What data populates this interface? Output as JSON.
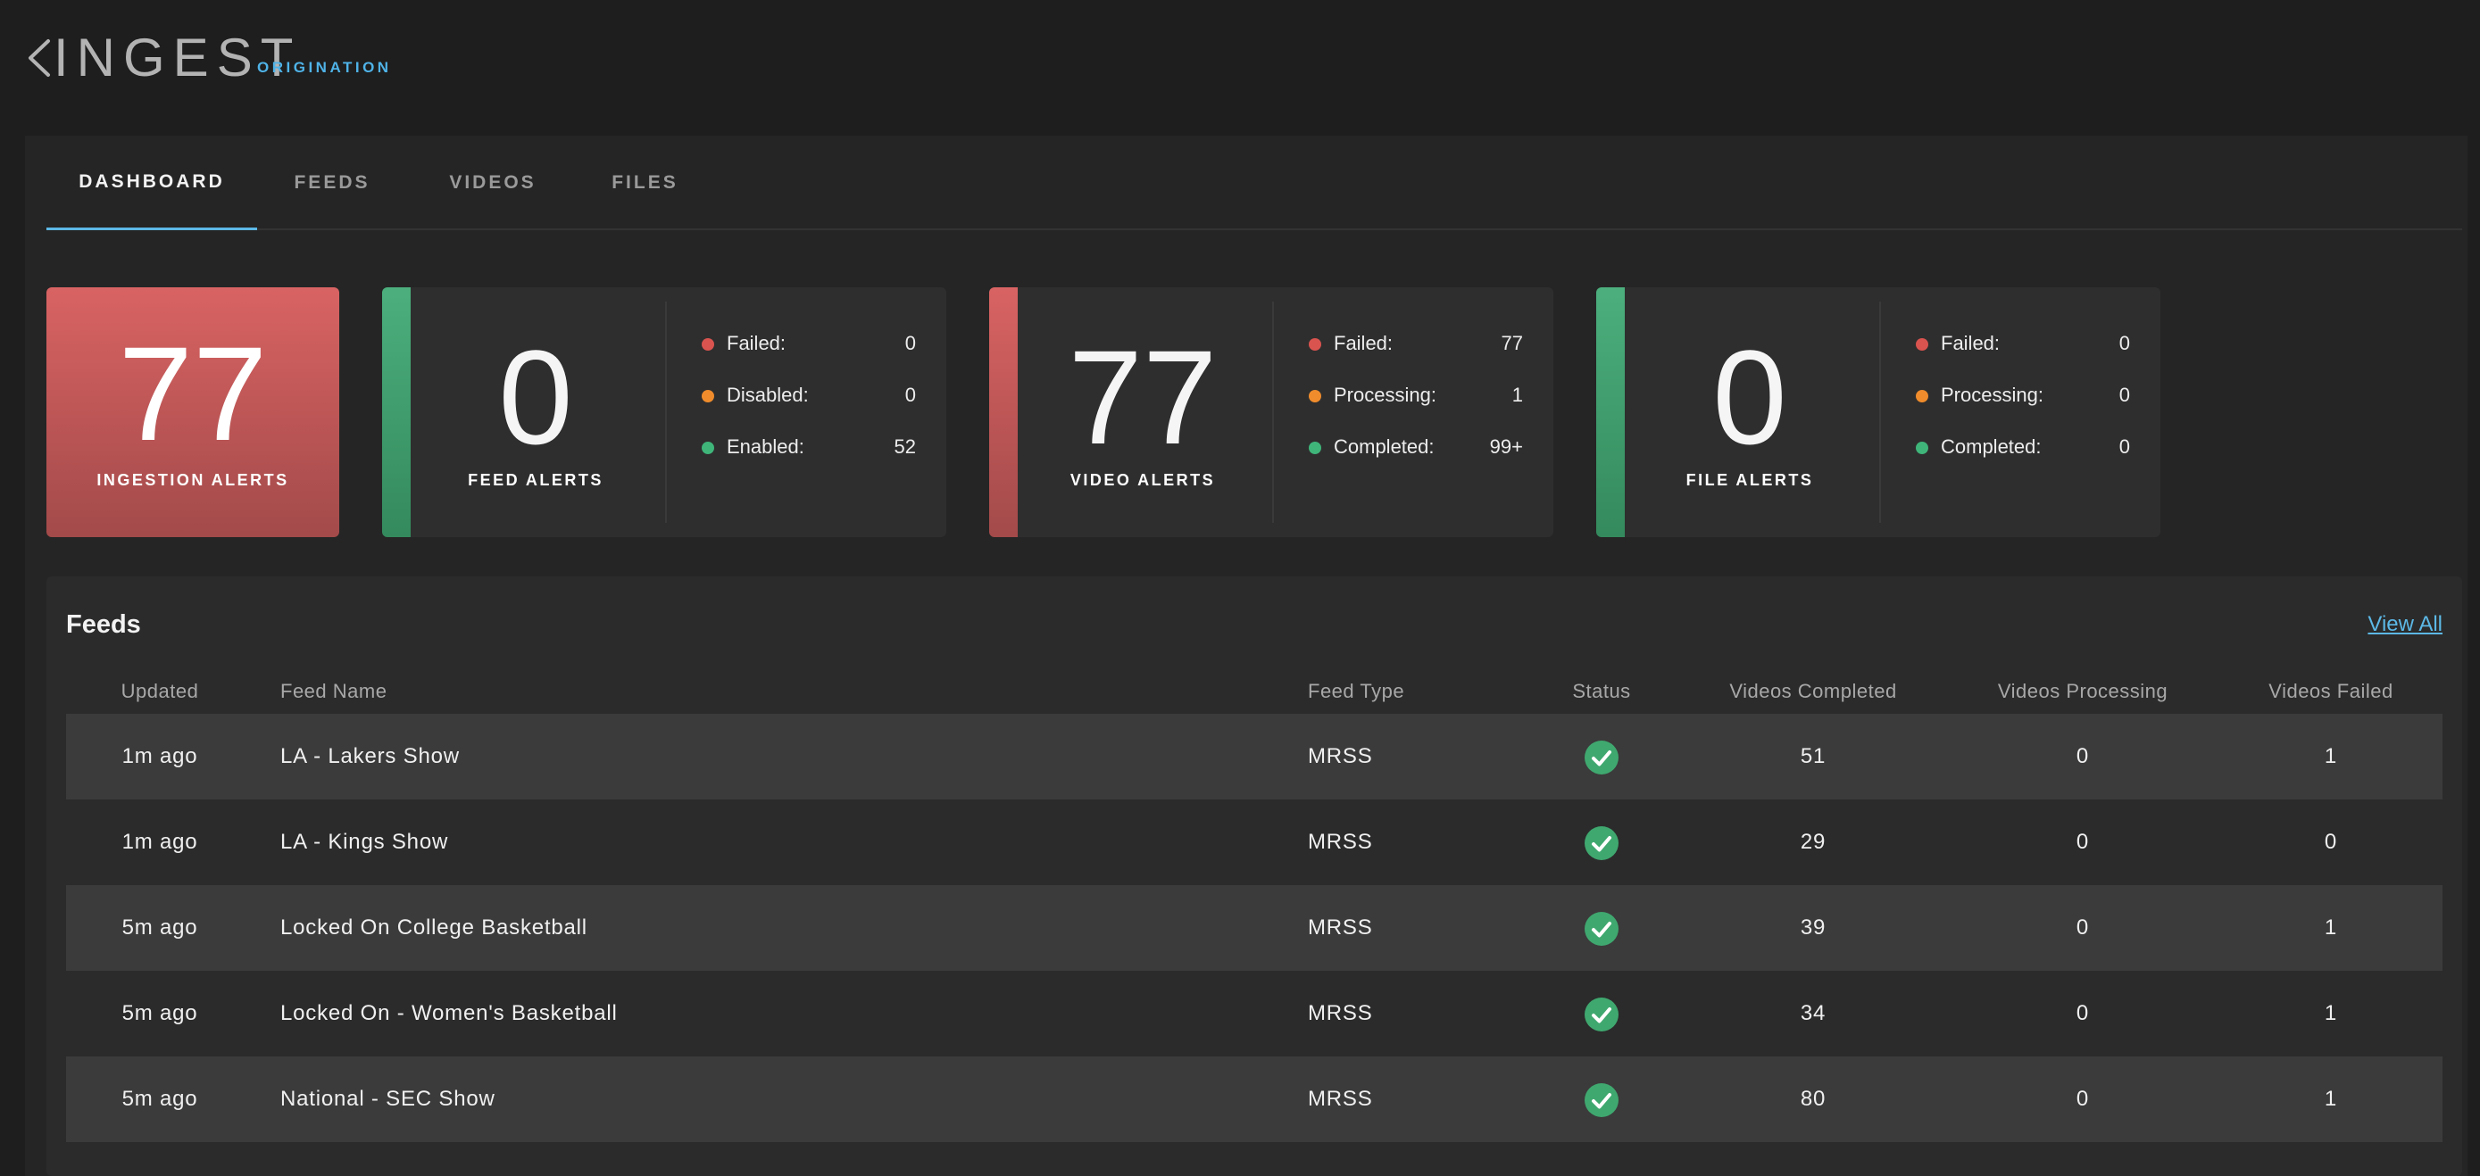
{
  "header": {
    "title": "INGEST",
    "subtitle": "ORIGINATION",
    "back_icon": "chevron-left-icon"
  },
  "tabs": [
    {
      "label": "DASHBOARD",
      "active": true
    },
    {
      "label": "FEEDS",
      "active": false
    },
    {
      "label": "VIDEOS",
      "active": false
    },
    {
      "label": "FILES",
      "active": false
    }
  ],
  "colors": {
    "accent": "#5cb8e6",
    "alert_red": "#d96363",
    "ok_green": "#4caf7d",
    "warn_orange": "#f08c2c"
  },
  "ingestion_alerts": {
    "value": "77",
    "label": "INGESTION ALERTS"
  },
  "alert_cards": [
    {
      "value": "0",
      "label": "FEED ALERTS",
      "status": "green",
      "stats": [
        {
          "label": "Failed:",
          "value": "0",
          "color": "red"
        },
        {
          "label": "Disabled:",
          "value": "0",
          "color": "orange"
        },
        {
          "label": "Enabled:",
          "value": "52",
          "color": "green"
        }
      ]
    },
    {
      "value": "77",
      "label": "VIDEO ALERTS",
      "status": "red",
      "stats": [
        {
          "label": "Failed:",
          "value": "77",
          "color": "red"
        },
        {
          "label": "Processing:",
          "value": "1",
          "color": "orange"
        },
        {
          "label": "Completed:",
          "value": "99+",
          "color": "green"
        }
      ]
    },
    {
      "value": "0",
      "label": "FILE ALERTS",
      "status": "green",
      "stats": [
        {
          "label": "Failed:",
          "value": "0",
          "color": "red"
        },
        {
          "label": "Processing:",
          "value": "0",
          "color": "orange"
        },
        {
          "label": "Completed:",
          "value": "0",
          "color": "green"
        }
      ]
    }
  ],
  "feeds": {
    "title": "Feeds",
    "view_all": "View All",
    "columns": [
      "Updated",
      "Feed Name",
      "Feed Type",
      "Status",
      "Videos Completed",
      "Videos Processing",
      "Videos Failed"
    ],
    "rows": [
      {
        "updated": "1m ago",
        "name": "LA - Lakers Show",
        "type": "MRSS",
        "status": "check-circle-icon",
        "completed": "51",
        "processing": "0",
        "failed": "1"
      },
      {
        "updated": "1m ago",
        "name": "LA - Kings Show",
        "type": "MRSS",
        "status": "check-circle-icon",
        "completed": "29",
        "processing": "0",
        "failed": "0"
      },
      {
        "updated": "5m ago",
        "name": "Locked On College Basketball",
        "type": "MRSS",
        "status": "check-circle-icon",
        "completed": "39",
        "processing": "0",
        "failed": "1"
      },
      {
        "updated": "5m ago",
        "name": "Locked On - Women's Basketball",
        "type": "MRSS",
        "status": "check-circle-icon",
        "completed": "34",
        "processing": "0",
        "failed": "1"
      },
      {
        "updated": "5m ago",
        "name": "National - SEC Show",
        "type": "MRSS",
        "status": "check-circle-icon",
        "completed": "80",
        "processing": "0",
        "failed": "1"
      }
    ]
  }
}
